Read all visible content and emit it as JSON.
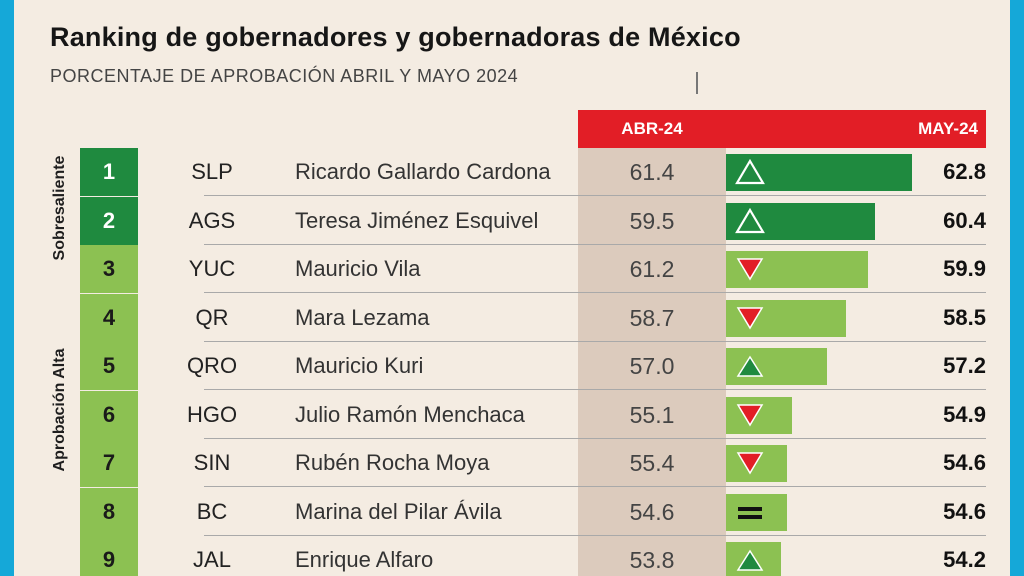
{
  "title": "Ranking de gobernadores y gobernadoras de México",
  "subtitle": "PORCENTAJE DE APROBACIÓN ABRIL Y MAYO 2024",
  "header": {
    "abr": "ABR-24",
    "may": "MAY-24"
  },
  "categories": {
    "top": "Sobresaliente",
    "high": "Aprobación Alta"
  },
  "colors": {
    "dark_green": "#1f8a3f",
    "light_green": "#8cc152",
    "red": "#e21e26",
    "abr_column": "#dccbbd"
  },
  "chart_data": {
    "type": "table",
    "title": "Ranking de gobernadores y gobernadoras de México",
    "subtitle": "PORCENTAJE DE APROBACIÓN ABRIL Y MAYO 2024",
    "columns": [
      "ABR-24",
      "MAY-24"
    ],
    "rows": [
      {
        "rank": "1",
        "state": "SLP",
        "name": "Ricardo Gallardo Cardona",
        "abr": "61.4",
        "may": "62.8",
        "may_value": 62.8,
        "trend": "up-outline",
        "category": "Sobresaliente"
      },
      {
        "rank": "2",
        "state": "AGS",
        "name": "Teresa Jiménez Esquivel",
        "abr": "59.5",
        "may": "60.4",
        "may_value": 60.4,
        "trend": "up-outline",
        "category": "Sobresaliente"
      },
      {
        "rank": "3",
        "state": "YUC",
        "name": "Mauricio Vila",
        "abr": "61.2",
        "may": "59.9",
        "may_value": 59.9,
        "trend": "down",
        "category": "Aprobación Alta"
      },
      {
        "rank": "4",
        "state": "QR",
        "name": "Mara Lezama",
        "abr": "58.7",
        "may": "58.5",
        "may_value": 58.5,
        "trend": "down",
        "category": "Aprobación Alta"
      },
      {
        "rank": "5",
        "state": "QRO",
        "name": "Mauricio Kuri",
        "abr": "57.0",
        "may": "57.2",
        "may_value": 57.2,
        "trend": "up",
        "category": "Aprobación Alta"
      },
      {
        "rank": "6",
        "state": "HGO",
        "name": "Julio Ramón Menchaca",
        "abr": "55.1",
        "may": "54.9",
        "may_value": 54.9,
        "trend": "down",
        "category": "Aprobación Alta"
      },
      {
        "rank": "7",
        "state": "SIN",
        "name": "Rubén Rocha Moya",
        "abr": "55.4",
        "may": "54.6",
        "may_value": 54.6,
        "trend": "down",
        "category": "Aprobación Alta"
      },
      {
        "rank": "8",
        "state": "BC",
        "name": "Marina del Pilar Ávila",
        "abr": "54.6",
        "may": "54.6",
        "may_value": 54.6,
        "trend": "equal",
        "category": "Aprobación Alta"
      },
      {
        "rank": "9",
        "state": "JAL",
        "name": "Enrique Alfaro",
        "abr": "53.8",
        "may": "54.2",
        "may_value": 54.2,
        "trend": "up",
        "category": "Aprobación Alta"
      }
    ]
  }
}
